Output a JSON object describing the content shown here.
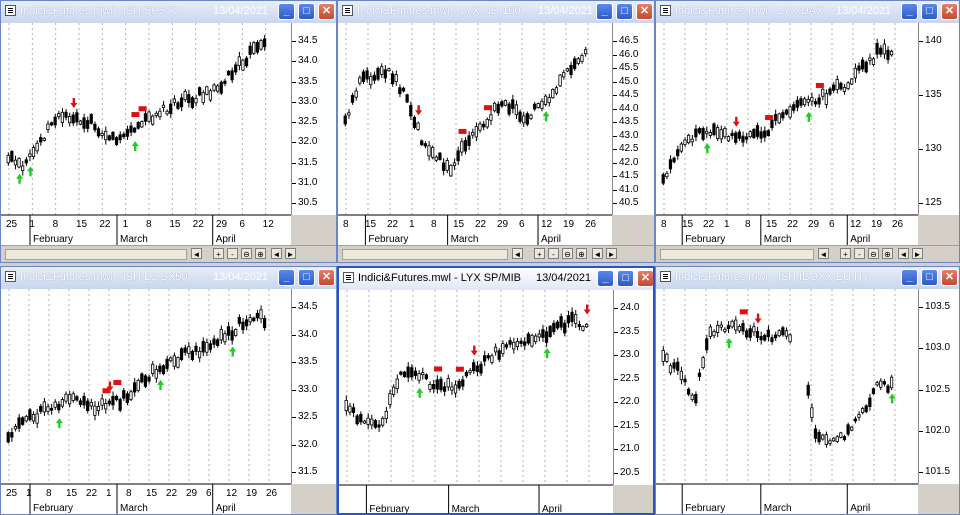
{
  "windows": [
    {
      "id": "w1",
      "title": "Indici&Futures.mwl - ISH SP500",
      "date": "13/04/2021",
      "active": false,
      "yticks": [
        "34.5",
        "34.0",
        "33.5",
        "33.0",
        "32.5",
        "32.0",
        "31.5",
        "31.0",
        "30.5"
      ],
      "xticks": [
        "25",
        "1",
        "8",
        "15",
        "22",
        "1",
        "8",
        "15",
        "22",
        "29",
        "6",
        "12"
      ],
      "months": [
        "February",
        "March",
        "April"
      ]
    },
    {
      "id": "w2",
      "title": "Indici&Futures.mwl - LYX ND-100",
      "date": "13/04/2021",
      "active": false,
      "yticks": [
        "46.5",
        "46.0",
        "45.5",
        "45.0",
        "44.5",
        "44.0",
        "43.5",
        "43.0",
        "42.5",
        "42.0",
        "41.5",
        "41.0",
        "40.5"
      ],
      "xticks": [
        "8",
        "15",
        "22",
        "1",
        "8",
        "15",
        "22",
        "29",
        "6",
        "12",
        "19",
        "26"
      ],
      "months": [
        "February",
        "March",
        "April"
      ]
    },
    {
      "id": "w3",
      "title": "Indici&Futures.mwl - LYX DAX",
      "date": "13/04/2021",
      "active": false,
      "yticks": [
        "140",
        "135",
        "130",
        "125"
      ],
      "xticks": [
        "8",
        "15",
        "22",
        "1",
        "8",
        "15",
        "22",
        "29",
        "6",
        "12",
        "19",
        "26"
      ],
      "months": [
        "February",
        "March",
        "April"
      ]
    },
    {
      "id": "w4",
      "title": "Indici&Futures.mwl - ISH DJ SX50",
      "date": "13/04/2021",
      "active": false,
      "yticks": [
        "34.5",
        "34.0",
        "33.5",
        "33.0",
        "32.5",
        "32.0",
        "31.5"
      ],
      "xticks": [
        "25",
        "1",
        "8",
        "15",
        "22",
        "1",
        "8",
        "15",
        "22",
        "29",
        "6",
        "12",
        "19",
        "26"
      ],
      "months": [
        "February",
        "March",
        "April"
      ]
    },
    {
      "id": "w5",
      "title": "Indici&Futures.mwl - LYX SP/MIB",
      "date": "13/04/2021",
      "active": true,
      "yticks": [
        "24.0",
        "23.5",
        "23.0",
        "22.5",
        "22.0",
        "21.5",
        "21.0",
        "20.5"
      ],
      "xticks": [],
      "months": [
        "February",
        "March",
        "April"
      ]
    },
    {
      "id": "w6",
      "title": "Indici&Futures.mwl - ISH IBOXX EU HY",
      "date": "",
      "active": false,
      "yticks": [
        "103.5",
        "103.0",
        "102.5",
        "102.0",
        "101.5"
      ],
      "xticks": [],
      "months": [
        "February",
        "March",
        "April"
      ]
    }
  ],
  "controls": {
    "minimize": "_",
    "maximize": "□",
    "close": "✕",
    "nav": [
      "◄",
      "►"
    ],
    "zoom_in": "+",
    "zoom_out": "-",
    "zoom_fit": "⊖",
    "zoom_reset": "⊕"
  },
  "colors": {
    "up_arrow": "#22cc22",
    "down_arrow": "#dd1111",
    "flag": "#dd1111",
    "bull": "#ffffff",
    "bear": "#000000"
  }
}
